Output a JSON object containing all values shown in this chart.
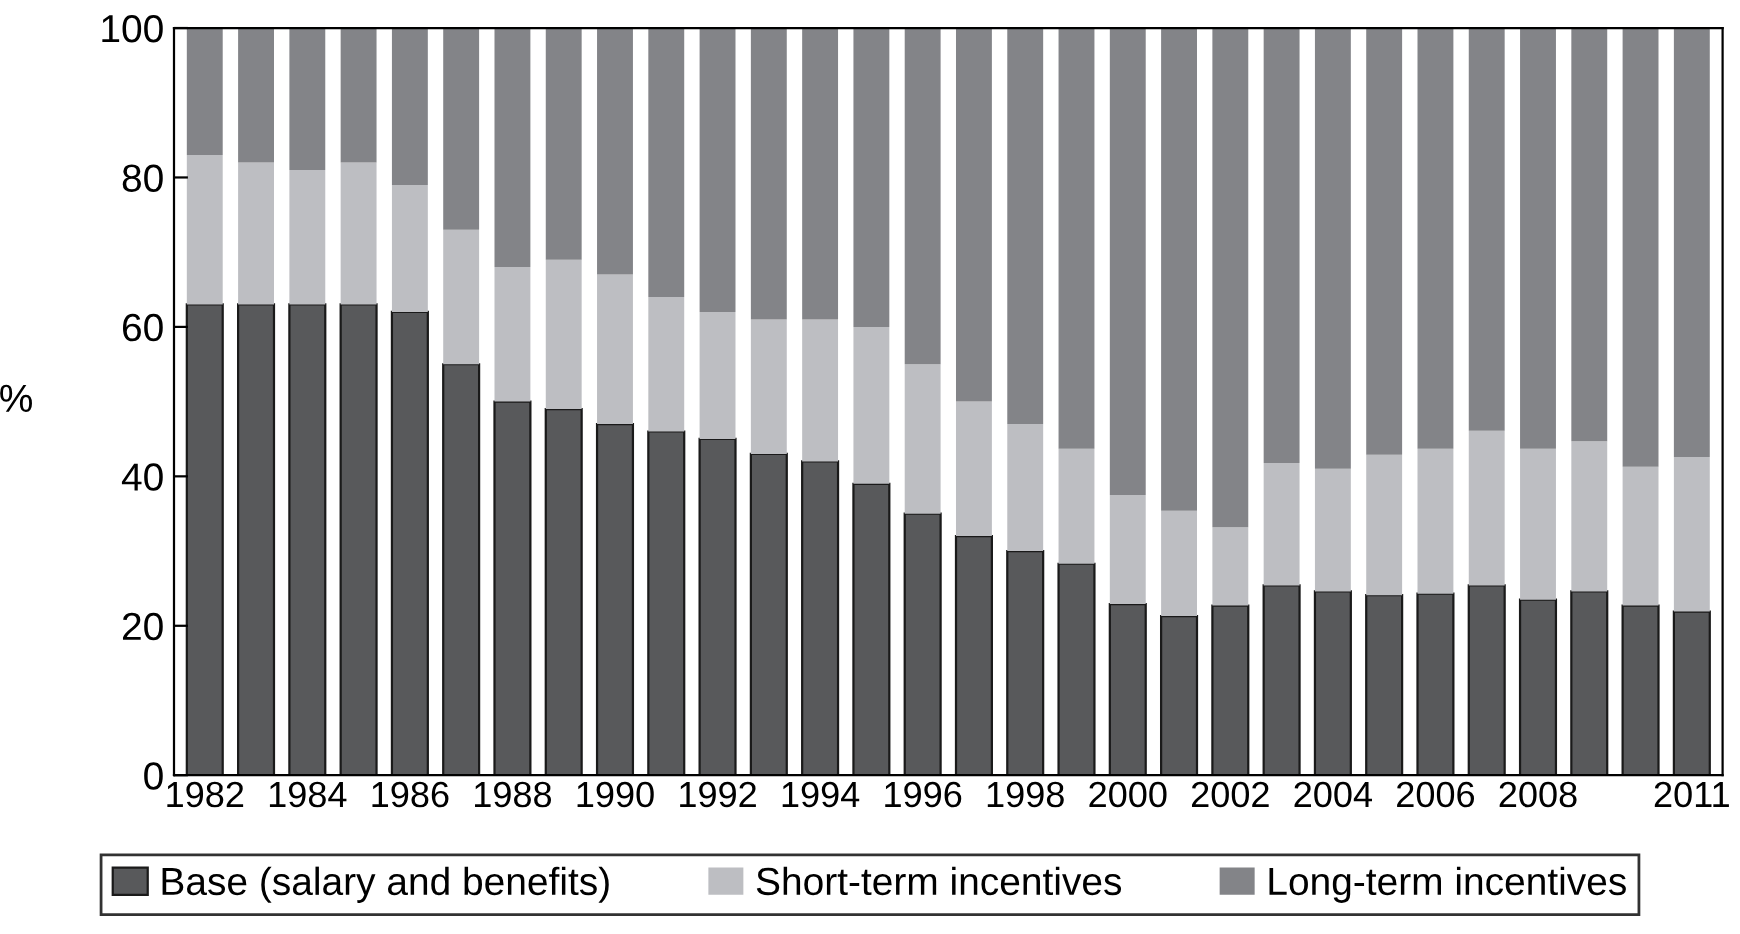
{
  "chart_data": {
    "type": "bar",
    "stacked": true,
    "ylabel": "%",
    "ylim": [
      0,
      100
    ],
    "yticks": [
      0,
      20,
      40,
      60,
      80,
      100
    ],
    "grid": false,
    "legend": "bottom",
    "categories": [
      "1982",
      null,
      "1984",
      null,
      "1986",
      null,
      "1988",
      null,
      "1990",
      null,
      "1992",
      null,
      "1994",
      null,
      "1996",
      null,
      "1998",
      null,
      "2000",
      null,
      "2002",
      null,
      "2004",
      null,
      "2006",
      null,
      "2008",
      null,
      null,
      "2011"
    ],
    "series": [
      {
        "name": "Base (salary and benefits)",
        "color": "#58595b",
        "values": [
          63,
          63,
          63,
          63,
          62,
          55,
          50,
          49,
          47,
          46,
          45,
          43,
          42,
          39,
          35,
          32,
          30,
          28.3,
          22.9,
          21.3,
          22.7,
          25.4,
          24.6,
          24.1,
          24.3,
          25.4,
          23.5,
          24.6,
          22.7,
          21.9
        ]
      },
      {
        "name": "Short-term incentives",
        "color": "#bdbec2",
        "values": [
          20,
          19,
          18,
          19,
          17,
          18,
          18,
          20,
          20,
          18,
          17,
          18,
          19,
          21,
          20,
          18,
          17,
          15.4,
          14.6,
          14.1,
          10.5,
          16.4,
          16.4,
          18.8,
          19.4,
          20.7,
          20.2,
          20.1,
          18.6,
          20.7
        ]
      },
      {
        "name": "Long-term incentives",
        "color": "#838488",
        "values": [
          17,
          18,
          19,
          18,
          21,
          27,
          32,
          31,
          33,
          36,
          38,
          39,
          39,
          40,
          45,
          50,
          53,
          56.3,
          62.5,
          64.6,
          66.8,
          58.2,
          59,
          57.1,
          56.3,
          53.9,
          56.3,
          55.3,
          58.7,
          57.4
        ]
      }
    ]
  }
}
